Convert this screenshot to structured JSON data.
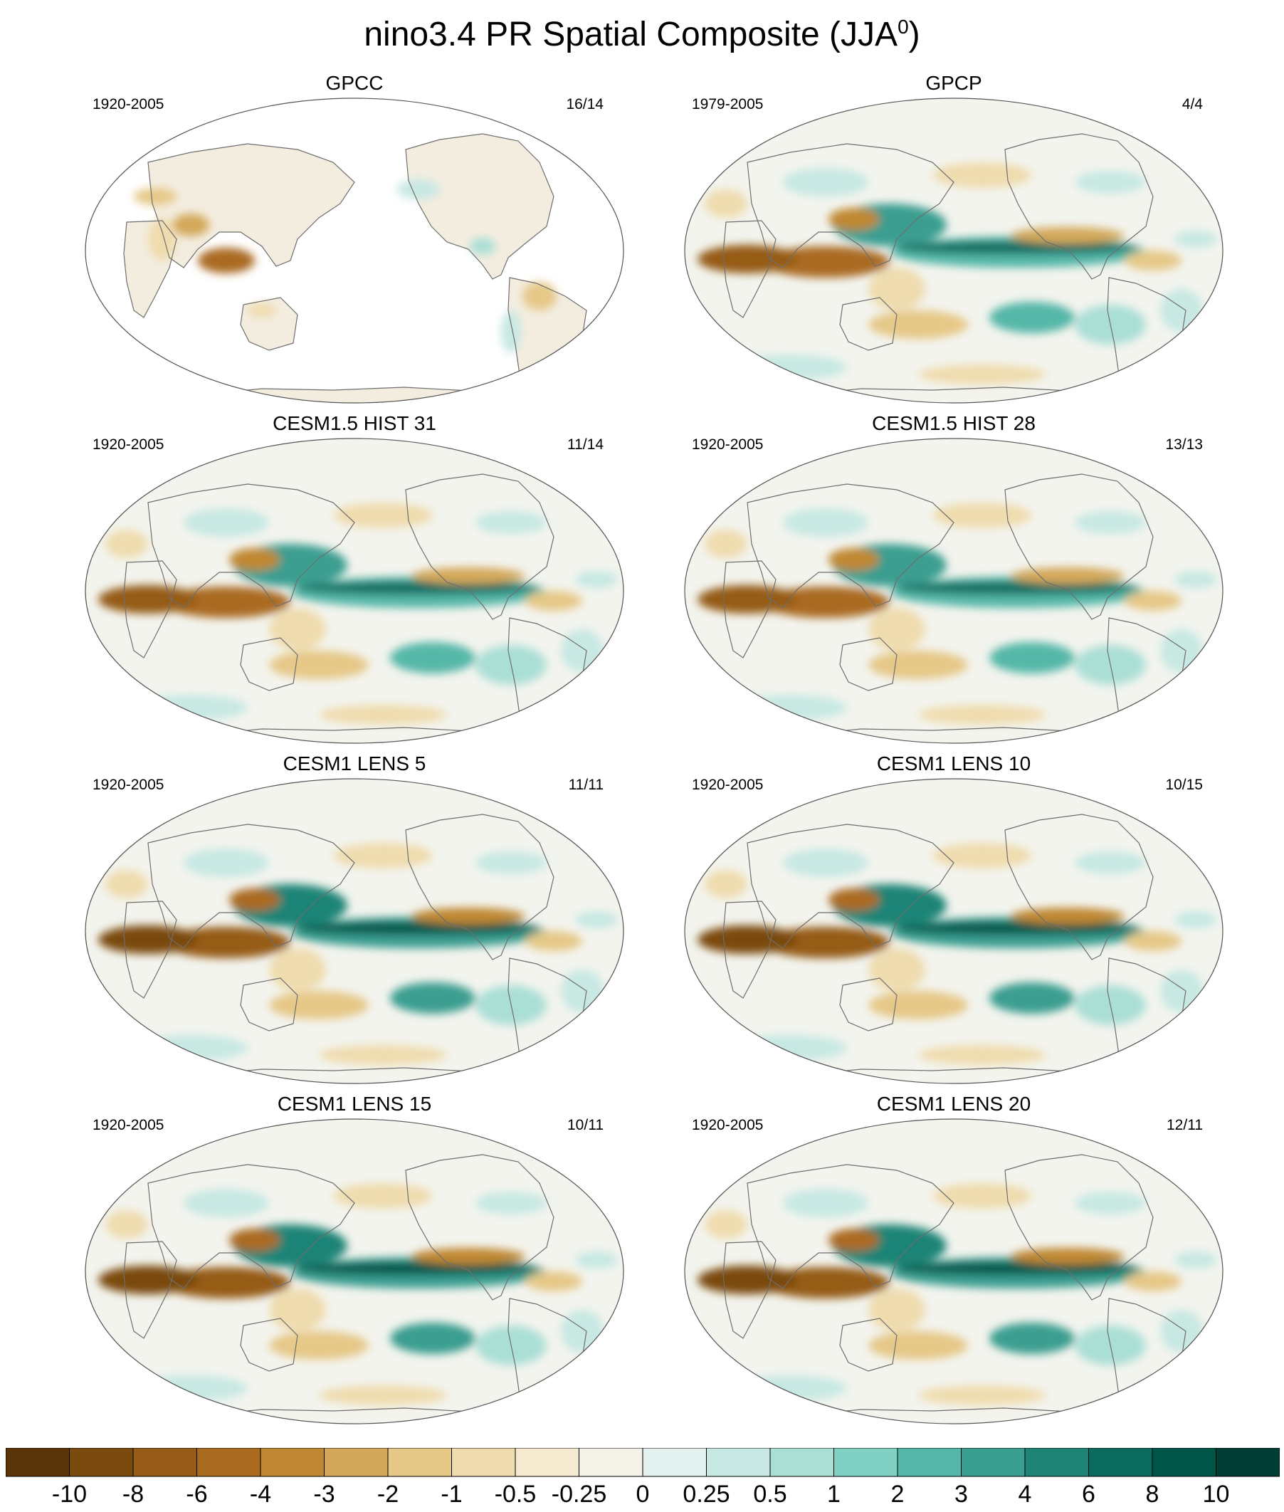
{
  "figure": {
    "title": "nino3.4 PR Spatial Composite (JJA",
    "title_sup": "0",
    "title_close": ")"
  },
  "panels": [
    {
      "title": "GPCC",
      "period": "1920-2005",
      "count": "16/14",
      "style": "land",
      "enso": 0.0
    },
    {
      "title": "GPCP",
      "period": "1979-2005",
      "count": "4/4",
      "style": "full",
      "enso": 0.7
    },
    {
      "title": "CESM1.5 HIST 31",
      "period": "1920-2005",
      "count": "11/14",
      "style": "full",
      "enso": 0.85
    },
    {
      "title": "CESM1.5 HIST 28",
      "period": "1920-2005",
      "count": "13/13",
      "style": "full",
      "enso": 0.8
    },
    {
      "title": "CESM1 LENS 5",
      "period": "1920-2005",
      "count": "11/11",
      "style": "full",
      "enso": 0.95
    },
    {
      "title": "CESM1 LENS 10",
      "period": "1920-2005",
      "count": "10/15",
      "style": "full",
      "enso": 0.9
    },
    {
      "title": "CESM1 LENS 15",
      "period": "1920-2005",
      "count": "10/11",
      "style": "full",
      "enso": 1.0
    },
    {
      "title": "CESM1 LENS 20",
      "period": "1920-2005",
      "count": "12/11",
      "style": "full",
      "enso": 0.95
    }
  ],
  "colorbar": {
    "labels": [
      "-10",
      "-8",
      "-6",
      "-4",
      "-3",
      "-2",
      "-1",
      "-0.5",
      "-0.25",
      "0",
      "0.25",
      "0.5",
      "1",
      "2",
      "3",
      "4",
      "6",
      "8",
      "10"
    ],
    "colors": [
      "#5a3509",
      "#7a4a0e",
      "#955b17",
      "#aa6b20",
      "#c08833",
      "#d3a85a",
      "#e6c887",
      "#efdcae",
      "#f5ead0",
      "#f5f2ea",
      "#e3f1ef",
      "#c7e8e3",
      "#aadfd6",
      "#80d0c3",
      "#55b7a8",
      "#3a9e90",
      "#1e8476",
      "#0b6b5e",
      "#005548",
      "#003d33"
    ]
  }
}
